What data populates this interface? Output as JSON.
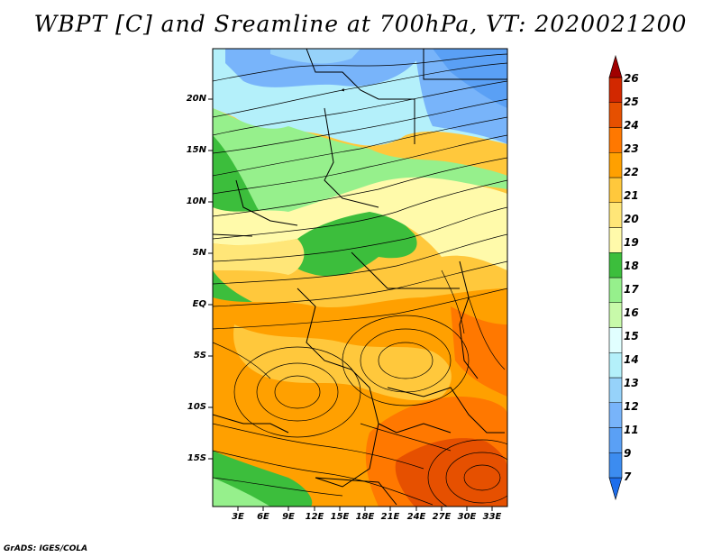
{
  "title": "WBPT [C] and Sreamline at 700hPa, VT: 2020021200",
  "footer": "GrADS: IGES/COLA",
  "map": {
    "lat_labels": [
      "20N",
      "15N",
      "10N",
      "5N",
      "EQ",
      "5S",
      "10S",
      "15S"
    ],
    "lon_labels": [
      "3E",
      "6E",
      "9E",
      "12E",
      "15E",
      "18E",
      "21E",
      "24E",
      "27E",
      "30E",
      "33E"
    ],
    "variable": "WBPT [C]",
    "level": "700hPa",
    "valid_time": "2020021200"
  },
  "colorbar": {
    "labels": [
      "7",
      "9",
      "11",
      "12",
      "13",
      "14",
      "15",
      "16",
      "17",
      "18",
      "19",
      "20",
      "21",
      "22",
      "23",
      "24",
      "25",
      "26"
    ],
    "colors": [
      "#1e6eeb",
      "#3c8cf0",
      "#5aa0f5",
      "#78b4fa",
      "#96d2fa",
      "#b4f0fa",
      "#e1ffff",
      "#c8faaa",
      "#96f08c",
      "#3cbe3c",
      "#fffaaa",
      "#ffe678",
      "#ffc83c",
      "#ffa000",
      "#ff7800",
      "#e65000",
      "#d22800",
      "#a00000"
    ]
  }
}
